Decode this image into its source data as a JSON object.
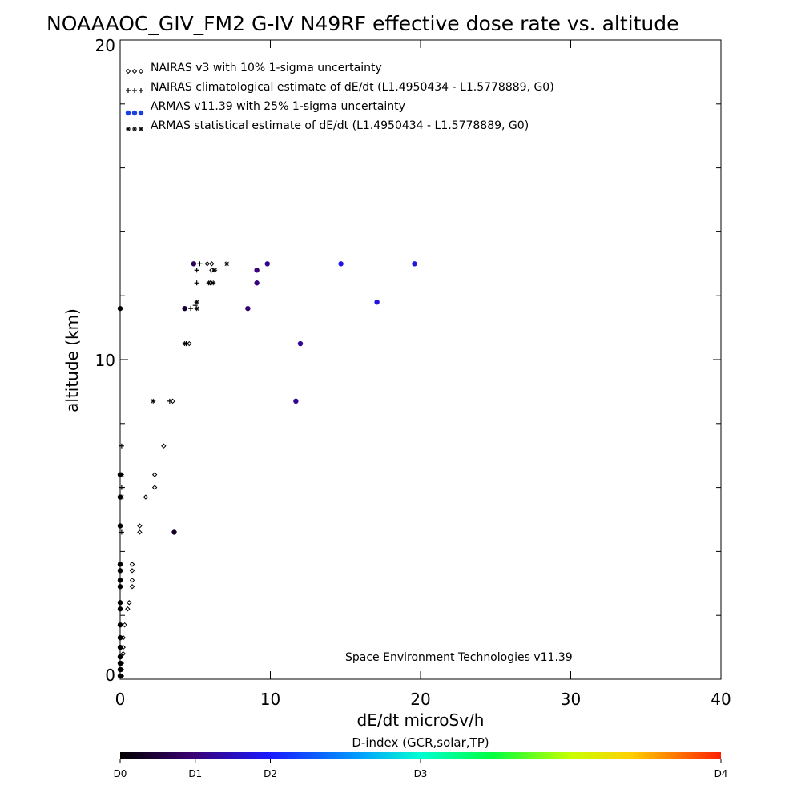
{
  "chart_data": {
    "type": "scatter",
    "title": "NOAAAOC_GIV_FM2 G-IV   N49RF  effective dose rate vs. altitude",
    "xlabel": "dE/dt microSv/h",
    "ylabel": "altitude (km)",
    "xlim": [
      0,
      40
    ],
    "ylim": [
      0,
      20
    ],
    "x_ticks": [
      "0",
      "10",
      "20",
      "30",
      "40"
    ],
    "y_ticks": [
      "0",
      "10",
      "20"
    ],
    "grid": false,
    "legend_position": "top-left",
    "credit": "Space Environment Technologies v11.39",
    "colorbar": {
      "title": "D-index (GCR,solar,TP)",
      "labels": [
        {
          "text": "D0",
          "value": 0
        },
        {
          "text": "D1",
          "value": 0.125
        },
        {
          "text": "D2",
          "value": 0.25
        },
        {
          "text": "D3",
          "value": 0.5
        },
        {
          "text": "D4",
          "value": 1.0
        }
      ],
      "colors": [
        "#000000",
        "#4b0082",
        "#0000ff",
        "#00c8ff",
        "#00ff64",
        "#ffff00",
        "#ff2000"
      ]
    },
    "series": [
      {
        "name": "NAIRAS v3 with 10% 1-sigma uncertainty",
        "marker": "diamond",
        "color": "#000000",
        "points": [
          [
            5.8,
            13.0
          ],
          [
            6.1,
            13.0
          ],
          [
            6.1,
            12.8
          ],
          [
            6.0,
            12.4
          ],
          [
            4.6,
            10.5
          ],
          [
            3.5,
            8.7
          ],
          [
            2.9,
            7.3
          ],
          [
            2.3,
            6.4
          ],
          [
            2.3,
            6.0
          ],
          [
            1.7,
            5.7
          ],
          [
            1.3,
            4.8
          ],
          [
            1.3,
            4.6
          ],
          [
            0.8,
            3.6
          ],
          [
            0.8,
            3.4
          ],
          [
            0.8,
            3.1
          ],
          [
            0.8,
            2.9
          ],
          [
            0.6,
            2.4
          ],
          [
            0.5,
            2.2
          ],
          [
            0.3,
            1.7
          ],
          [
            0.2,
            1.3
          ],
          [
            0.2,
            1.0
          ],
          [
            0.2,
            0.8
          ],
          [
            0.1,
            0.5
          ],
          [
            0.1,
            0.3
          ],
          [
            0.1,
            0.1
          ]
        ]
      },
      {
        "name": "NAIRAS climatological estimate of dE/dt (L1.4950434 - L1.5778889, G0)",
        "marker": "plus",
        "color": "#000000",
        "points": [
          [
            5.3,
            13.0
          ],
          [
            5.1,
            12.8
          ],
          [
            5.1,
            12.4
          ],
          [
            5.0,
            11.7
          ],
          [
            4.7,
            11.6
          ],
          [
            4.4,
            10.5
          ],
          [
            3.3,
            8.7
          ],
          [
            0.1,
            7.3
          ],
          [
            0.1,
            6.0
          ],
          [
            0.1,
            4.6
          ]
        ]
      },
      {
        "name": "ARMAS v11.39 with 25% 1-sigma uncertainty",
        "marker": "dot",
        "points": [
          [
            4.9,
            13.0,
            0.09
          ],
          [
            9.8,
            13.0,
            0.14
          ],
          [
            14.7,
            13.0,
            0.23
          ],
          [
            19.6,
            13.0,
            0.22
          ],
          [
            9.1,
            12.8,
            0.13
          ],
          [
            9.1,
            12.4,
            0.13
          ],
          [
            17.1,
            11.8,
            0.22
          ],
          [
            4.3,
            11.6,
            0.05
          ],
          [
            8.5,
            11.6,
            0.11
          ],
          [
            12.0,
            10.5,
            0.15
          ],
          [
            11.7,
            8.7,
            0.15
          ],
          [
            3.6,
            4.6,
            0.04
          ],
          [
            0.0,
            11.6,
            0.0
          ],
          [
            0.0,
            6.4,
            0.0
          ],
          [
            0.0,
            5.7,
            0.0
          ],
          [
            0.0,
            4.8,
            0.0
          ],
          [
            0.0,
            3.6,
            0.0
          ],
          [
            0.0,
            3.4,
            0.0
          ],
          [
            0.0,
            3.1,
            0.0
          ],
          [
            0.0,
            2.9,
            0.0
          ],
          [
            0.0,
            2.4,
            0.0
          ],
          [
            0.0,
            2.2,
            0.0
          ],
          [
            0.0,
            1.7,
            0.0
          ],
          [
            0.0,
            1.3,
            0.0
          ],
          [
            0.0,
            1.0,
            0.0
          ],
          [
            0.0,
            0.7,
            0.0
          ],
          [
            0.0,
            0.5,
            0.0
          ],
          [
            0.0,
            0.3,
            0.0
          ],
          [
            0.0,
            0.1,
            0.0
          ]
        ]
      },
      {
        "name": "ARMAS statistical estimate of dE/dt (L1.4950434 - L1.5778889, G0)",
        "marker": "asterisk",
        "color": "#000000",
        "points": [
          [
            7.1,
            13.0
          ],
          [
            6.3,
            12.8
          ],
          [
            6.2,
            12.4
          ],
          [
            5.9,
            12.4
          ],
          [
            5.1,
            11.8
          ],
          [
            5.1,
            11.6
          ],
          [
            4.3,
            10.5
          ],
          [
            2.2,
            8.7
          ],
          [
            0.1,
            6.4
          ],
          [
            0.1,
            5.7
          ]
        ]
      }
    ]
  }
}
